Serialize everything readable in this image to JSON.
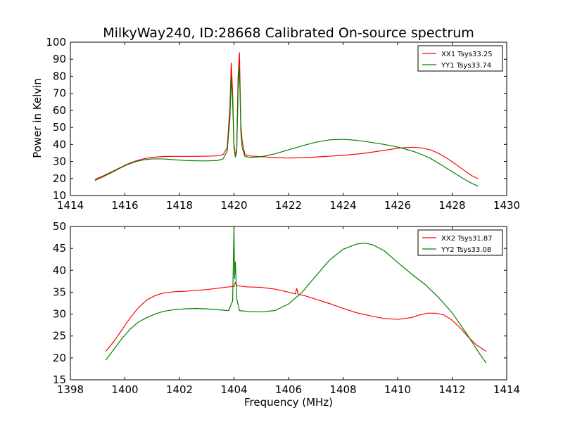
{
  "figure": {
    "title": "MilkyWay240, ID:28668 Calibrated On-source spectrum",
    "ylabel": "Power in Kelvin",
    "xlabel": "Frequency (MHz)"
  },
  "chart_data": [
    {
      "type": "line",
      "xlim": [
        1414,
        1430
      ],
      "ylim": [
        10,
        100
      ],
      "xticks": [
        "1414",
        "1416",
        "1418",
        "1420",
        "1422",
        "1424",
        "1426",
        "1428",
        "1430"
      ],
      "yticks": [
        "10",
        "20",
        "30",
        "40",
        "50",
        "60",
        "70",
        "80",
        "90",
        "100"
      ],
      "legend_position": "top-right",
      "series": [
        {
          "name": "XX1 Tsys33.25",
          "color": "#ff0000",
          "x": [
            1414.9,
            1415.2,
            1415.5,
            1415.8,
            1416.1,
            1416.4,
            1416.7,
            1417.0,
            1417.4,
            1417.8,
            1418.2,
            1418.6,
            1419.0,
            1419.4,
            1419.6,
            1419.75,
            1419.85,
            1419.9,
            1419.95,
            1420.0,
            1420.05,
            1420.1,
            1420.15,
            1420.2,
            1420.25,
            1420.3,
            1420.4,
            1420.6,
            1421.0,
            1421.5,
            1422.0,
            1422.5,
            1423.0,
            1423.5,
            1424.0,
            1424.5,
            1425.0,
            1425.5,
            1426.0,
            1426.3,
            1426.6,
            1426.9,
            1427.2,
            1427.5,
            1427.8,
            1428.1,
            1428.4,
            1428.7,
            1428.95
          ],
          "y": [
            19.5,
            21.5,
            23.8,
            26.2,
            28.5,
            30.3,
            31.6,
            32.4,
            32.9,
            33.0,
            33.0,
            33.0,
            33.1,
            33.3,
            34,
            38,
            62,
            88,
            70,
            40,
            33,
            38,
            80,
            94,
            52,
            42,
            34,
            33.2,
            32.8,
            32.3,
            32.0,
            32.2,
            32.6,
            33.1,
            33.6,
            34.3,
            35.3,
            36.5,
            37.7,
            38.2,
            38.3,
            37.9,
            36.8,
            34.8,
            32.0,
            28.7,
            25.2,
            21.8,
            19.8
          ]
        },
        {
          "name": "YY1 Tsys33.74",
          "color": "#008000",
          "x": [
            1414.9,
            1415.2,
            1415.5,
            1415.8,
            1416.1,
            1416.4,
            1416.7,
            1417.0,
            1417.4,
            1417.8,
            1418.2,
            1418.6,
            1419.0,
            1419.4,
            1419.6,
            1419.75,
            1419.85,
            1419.9,
            1419.95,
            1420.0,
            1420.05,
            1420.1,
            1420.15,
            1420.2,
            1420.25,
            1420.3,
            1420.4,
            1420.6,
            1421.0,
            1421.5,
            1422.0,
            1422.5,
            1423.0,
            1423.5,
            1424.0,
            1424.5,
            1425.0,
            1425.5,
            1426.0,
            1426.3,
            1426.6,
            1426.9,
            1427.2,
            1427.5,
            1427.8,
            1428.1,
            1428.4,
            1428.7,
            1428.95
          ],
          "y": [
            18.8,
            21.0,
            23.4,
            25.9,
            28.2,
            29.9,
            31.0,
            31.5,
            31.5,
            31.0,
            30.6,
            30.4,
            30.3,
            30.6,
            31.5,
            36,
            55,
            80,
            65,
            38,
            32.5,
            36,
            72,
            86,
            48,
            38,
            33,
            32.3,
            32.8,
            34.5,
            36.8,
            39.2,
            41.3,
            42.7,
            43.0,
            42.4,
            41.3,
            40.0,
            38.5,
            37.2,
            35.8,
            34.0,
            31.8,
            29.0,
            26.0,
            23.0,
            20.0,
            17.3,
            15.5
          ]
        }
      ]
    },
    {
      "type": "line",
      "xlim": [
        1398,
        1414
      ],
      "ylim": [
        15,
        50
      ],
      "xticks": [
        "1398",
        "1400",
        "1402",
        "1404",
        "1406",
        "1408",
        "1410",
        "1412",
        "1414"
      ],
      "yticks": [
        "15",
        "20",
        "25",
        "30",
        "35",
        "40",
        "45",
        "50"
      ],
      "legend_position": "top-right",
      "series": [
        {
          "name": "XX2 Tsys31.87",
          "color": "#ff0000",
          "x": [
            1399.3,
            1399.6,
            1399.9,
            1400.2,
            1400.5,
            1400.8,
            1401.1,
            1401.4,
            1401.8,
            1402.2,
            1402.6,
            1403.0,
            1403.4,
            1403.8,
            1404.0,
            1404.05,
            1404.1,
            1404.2,
            1404.5,
            1405.0,
            1405.5,
            1406.0,
            1406.25,
            1406.3,
            1406.35,
            1406.6,
            1407.0,
            1407.5,
            1408.0,
            1408.5,
            1409.0,
            1409.5,
            1410.0,
            1410.5,
            1410.8,
            1411.1,
            1411.4,
            1411.7,
            1412.0,
            1412.3,
            1412.6,
            1412.9,
            1413.25
          ],
          "y": [
            21.5,
            23.8,
            26.5,
            29.2,
            31.5,
            33.2,
            34.2,
            34.8,
            35.1,
            35.2,
            35.4,
            35.6,
            35.9,
            36.2,
            36.3,
            37.2,
            36.6,
            36.4,
            36.2,
            36.1,
            35.7,
            35.0,
            34.6,
            35.9,
            34.5,
            34.2,
            33.4,
            32.4,
            31.3,
            30.3,
            29.6,
            29.0,
            28.8,
            29.2,
            29.8,
            30.2,
            30.2,
            29.8,
            28.6,
            26.8,
            24.7,
            22.9,
            21.5
          ]
        },
        {
          "name": "YY2 Tsys33.08",
          "color": "#008000",
          "x": [
            1399.3,
            1399.6,
            1399.9,
            1400.2,
            1400.5,
            1400.8,
            1401.1,
            1401.4,
            1401.8,
            1402.2,
            1402.6,
            1403.0,
            1403.4,
            1403.8,
            1403.95,
            1404.0,
            1404.02,
            1404.05,
            1404.1,
            1404.2,
            1404.5,
            1405.0,
            1405.5,
            1406.0,
            1406.5,
            1407.0,
            1407.5,
            1408.0,
            1408.5,
            1408.8,
            1409.1,
            1409.5,
            1410.0,
            1410.5,
            1411.0,
            1411.5,
            1412.0,
            1412.5,
            1413.0,
            1413.25
          ],
          "y": [
            19.5,
            22.0,
            24.5,
            26.6,
            28.2,
            29.2,
            30.0,
            30.6,
            31.0,
            31.2,
            31.3,
            31.2,
            31.0,
            30.8,
            33.0,
            50.0,
            38.0,
            42.0,
            33.5,
            30.8,
            30.6,
            30.5,
            30.8,
            32.3,
            35.0,
            38.7,
            42.3,
            44.8,
            46.0,
            46.2,
            45.8,
            44.5,
            41.8,
            39.2,
            36.8,
            33.8,
            30.3,
            25.8,
            21.0,
            18.8
          ]
        }
      ]
    }
  ]
}
